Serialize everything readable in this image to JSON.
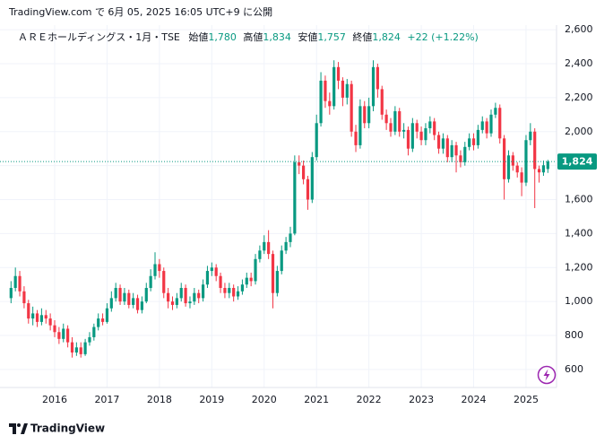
{
  "header": {
    "published": "TradingView.com で 6月 05, 2025 16:05 UTC+9 に公開"
  },
  "legend": {
    "symbol": "ＡＲＥホールディングス・1月・TSE",
    "items": [
      {
        "label": "始値",
        "value": "1,780"
      },
      {
        "label": "高値",
        "value": "1,834"
      },
      {
        "label": "安値",
        "value": "1,757"
      },
      {
        "label": "終値",
        "value": "1,824"
      }
    ],
    "change": "+22 (+1.22%)"
  },
  "footer": {
    "brand": "TradingView"
  },
  "chart_data": {
    "type": "candlestick",
    "up_color": "#089981",
    "down_color": "#f23645",
    "grid": true,
    "categories": [
      null,
      null,
      null,
      null,
      null,
      null,
      null,
      null,
      null,
      null,
      "2016",
      null,
      null,
      null,
      null,
      null,
      null,
      null,
      null,
      null,
      null,
      null,
      "2017",
      null,
      null,
      null,
      null,
      null,
      null,
      null,
      null,
      null,
      null,
      null,
      "2018",
      null,
      null,
      null,
      null,
      null,
      null,
      null,
      null,
      null,
      null,
      null,
      "2019",
      null,
      null,
      null,
      null,
      null,
      null,
      null,
      null,
      null,
      null,
      null,
      "2020",
      null,
      null,
      null,
      null,
      null,
      null,
      null,
      null,
      null,
      null,
      null,
      "2021",
      null,
      null,
      null,
      null,
      null,
      null,
      null,
      null,
      null,
      null,
      null,
      "2022",
      null,
      null,
      null,
      null,
      null,
      null,
      null,
      null,
      null,
      null,
      null,
      "2023",
      null,
      null,
      null,
      null,
      null,
      null,
      null,
      null,
      null,
      null,
      null,
      "2024",
      null,
      null,
      null,
      null,
      null,
      null,
      null,
      null,
      null,
      null,
      null,
      "2025",
      null,
      null,
      null,
      null,
      null
    ],
    "open": [
      1020,
      1080,
      1150,
      1060,
      990,
      900,
      930,
      880,
      920,
      900,
      860,
      820,
      780,
      840,
      760,
      700,
      730,
      690,
      760,
      790,
      850,
      900,
      880,
      960,
      1020,
      1080,
      1000,
      1050,
      980,
      1020,
      950,
      1000,
      1080,
      1150,
      1220,
      1180,
      1050,
      1000,
      980,
      1020,
      1080,
      990,
      1000,
      1050,
      1020,
      1100,
      1180,
      1200,
      1150,
      1080,
      1050,
      1080,
      1030,
      1060,
      1100,
      1140,
      1120,
      1250,
      1300,
      1350,
      1280,
      1050,
      1180,
      1300,
      1350,
      1400,
      1820,
      1800,
      1720,
      1600,
      1850,
      2050,
      2300,
      2180,
      2150,
      2380,
      2300,
      2200,
      2280,
      2000,
      1920,
      2150,
      2050,
      2150,
      2380,
      2250,
      2100,
      2050,
      2000,
      2120,
      2000,
      2010,
      1900,
      2050,
      2000,
      1950,
      2020,
      2060,
      1980,
      1900,
      1960,
      1850,
      1920,
      1860,
      1820,
      1910,
      1960,
      1920,
      2010,
      2060,
      1990,
      2100,
      2140,
      1960,
      1720,
      1860,
      1800,
      1760,
      1700,
      1950,
      2000,
      1780,
      1760,
      1780
    ],
    "high": [
      1120,
      1200,
      1180,
      1090,
      1010,
      970,
      950,
      960,
      950,
      930,
      890,
      850,
      870,
      860,
      790,
      760,
      760,
      780,
      820,
      870,
      930,
      930,
      990,
      1060,
      1110,
      1100,
      1080,
      1070,
      1050,
      1040,
      1030,
      1110,
      1190,
      1290,
      1250,
      1200,
      1080,
      1030,
      1050,
      1110,
      1100,
      1030,
      1080,
      1070,
      1130,
      1210,
      1230,
      1220,
      1170,
      1110,
      1110,
      1100,
      1090,
      1130,
      1170,
      1170,
      1280,
      1330,
      1390,
      1420,
      1300,
      1210,
      1330,
      1380,
      1440,
      1860,
      1860,
      1830,
      1740,
      1880,
      2100,
      2350,
      2330,
      2230,
      2420,
      2410,
      2320,
      2310,
      2300,
      2040,
      2190,
      2180,
      2200,
      2420,
      2400,
      2270,
      2130,
      2080,
      2150,
      2140,
      2050,
      2030,
      2080,
      2070,
      2030,
      2050,
      2090,
      2080,
      2000,
      1990,
      1980,
      1950,
      1940,
      1890,
      1940,
      1990,
      1990,
      2040,
      2090,
      2080,
      2130,
      2170,
      2160,
      1980,
      1890,
      1880,
      1820,
      1790,
      1980,
      2050,
      2020,
      1800,
      1830,
      1834
    ],
    "low": [
      990,
      1060,
      1030,
      960,
      870,
      860,
      850,
      860,
      870,
      830,
      790,
      750,
      760,
      730,
      670,
      680,
      670,
      680,
      740,
      770,
      830,
      860,
      870,
      940,
      1000,
      980,
      980,
      960,
      960,
      930,
      930,
      990,
      1060,
      1130,
      1140,
      1020,
      960,
      950,
      960,
      1000,
      970,
      960,
      980,
      990,
      1000,
      1080,
      1150,
      1120,
      1050,
      1020,
      1020,
      1000,
      1010,
      1040,
      1080,
      1090,
      1100,
      1230,
      1280,
      1250,
      960,
      1030,
      1160,
      1280,
      1320,
      1390,
      1750,
      1690,
      1540,
      1580,
      1830,
      2030,
      2140,
      2100,
      2130,
      2250,
      2150,
      2160,
      1970,
      1880,
      1900,
      2020,
      2020,
      2120,
      2200,
      2070,
      2010,
      1970,
      1980,
      1970,
      1960,
      1860,
      1880,
      1960,
      1920,
      1920,
      1990,
      1950,
      1870,
      1870,
      1820,
      1820,
      1760,
      1790,
      1800,
      1890,
      1890,
      1900,
      1990,
      1960,
      1970,
      2080,
      1930,
      1600,
      1700,
      1770,
      1730,
      1620,
      1680,
      1920,
      1550,
      1700,
      1740,
      1757
    ],
    "close": [
      1080,
      1150,
      1060,
      990,
      900,
      930,
      880,
      920,
      900,
      860,
      820,
      780,
      840,
      760,
      700,
      730,
      690,
      760,
      790,
      850,
      900,
      880,
      960,
      1020,
      1080,
      1000,
      1050,
      980,
      1020,
      950,
      1000,
      1080,
      1150,
      1220,
      1180,
      1050,
      1000,
      980,
      1020,
      1080,
      990,
      1000,
      1050,
      1020,
      1100,
      1180,
      1200,
      1150,
      1080,
      1050,
      1080,
      1030,
      1060,
      1100,
      1140,
      1120,
      1250,
      1300,
      1350,
      1280,
      1050,
      1180,
      1300,
      1350,
      1400,
      1820,
      1800,
      1720,
      1600,
      1850,
      2050,
      2300,
      2180,
      2150,
      2380,
      2300,
      2200,
      2280,
      2000,
      1920,
      2150,
      2050,
      2150,
      2380,
      2250,
      2100,
      2050,
      2000,
      2120,
      2000,
      2010,
      1900,
      2050,
      2000,
      1950,
      2020,
      2060,
      1980,
      1900,
      1960,
      1850,
      1920,
      1860,
      1820,
      1910,
      1960,
      1920,
      2010,
      2060,
      1990,
      2100,
      2140,
      1960,
      1720,
      1860,
      1800,
      1760,
      1700,
      1950,
      2000,
      1780,
      1760,
      1802,
      1824
    ],
    "ylim": [
      494,
      2627
    ],
    "yticks": [
      600,
      800,
      {
        "value": 1000,
        "label": "1,000"
      },
      {
        "value": 1200,
        "label": "1,200"
      },
      {
        "value": 1400,
        "label": "1,400"
      },
      {
        "value": 1600,
        "label": "1,600"
      },
      {
        "value": 1800,
        "label": "1,800"
      },
      {
        "value": 2000,
        "label": "2,000"
      },
      {
        "value": 2200,
        "label": "2,200"
      },
      {
        "value": 2400,
        "label": "2,400"
      },
      {
        "value": 2600,
        "label": "2,600"
      }
    ],
    "last_price": {
      "value": 1824,
      "label": "1,824"
    }
  }
}
